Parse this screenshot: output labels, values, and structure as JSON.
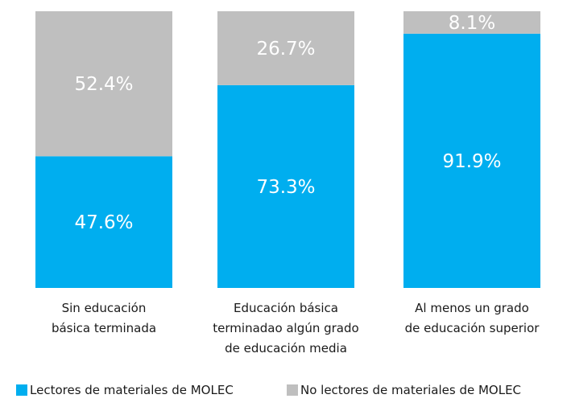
{
  "chart_data": {
    "type": "stacked-bar-100",
    "categories": [
      [
        "Sin educación",
        "básica terminada"
      ],
      [
        "Educación básica",
        "terminadao algún grado",
        "de educación media"
      ],
      [
        "Al menos un grado",
        "de educación superior"
      ]
    ],
    "series": [
      {
        "name": "Lectores de materiales de MOLEC",
        "values": [
          47.6,
          73.3,
          91.9
        ],
        "value_labels": [
          "47.6%",
          "73.3%",
          "91.9%"
        ],
        "color": "#00aeef"
      },
      {
        "name": "No lectores de materiales de MOLEC",
        "values": [
          52.4,
          26.7,
          8.1
        ],
        "value_labels": [
          "52.4%",
          "26.7%",
          "8.1%"
        ],
        "color": "#bfbfbf"
      }
    ],
    "ylim": [
      0,
      100
    ],
    "legend_position": "bottom",
    "grid": false
  }
}
